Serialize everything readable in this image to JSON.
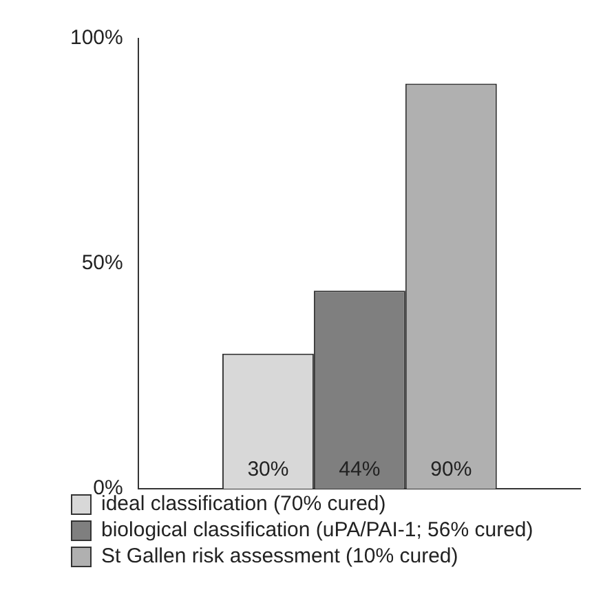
{
  "chart_data": {
    "type": "bar",
    "categories": [
      null
    ],
    "series": [
      {
        "name": "ideal classification (70% cured)",
        "color": "#d8d8d8",
        "values": [
          30
        ],
        "value_labels": [
          "30%"
        ]
      },
      {
        "name": "biological classification (uPA/PAI-1; 56% cured)",
        "color": "#7f7f7f",
        "values": [
          44
        ],
        "value_labels": [
          "44%"
        ]
      },
      {
        "name": "St Gallen risk assessment (10% cured)",
        "color": "#b0b0b0",
        "values": [
          90
        ],
        "value_labels": [
          "90%"
        ]
      }
    ],
    "ylim": [
      0,
      100
    ],
    "yticks": [
      {
        "value": 0,
        "label": "0%"
      },
      {
        "value": 50,
        "label": "50%"
      },
      {
        "value": 100,
        "label": "100%"
      }
    ],
    "grid": false,
    "legend": "bottom"
  }
}
